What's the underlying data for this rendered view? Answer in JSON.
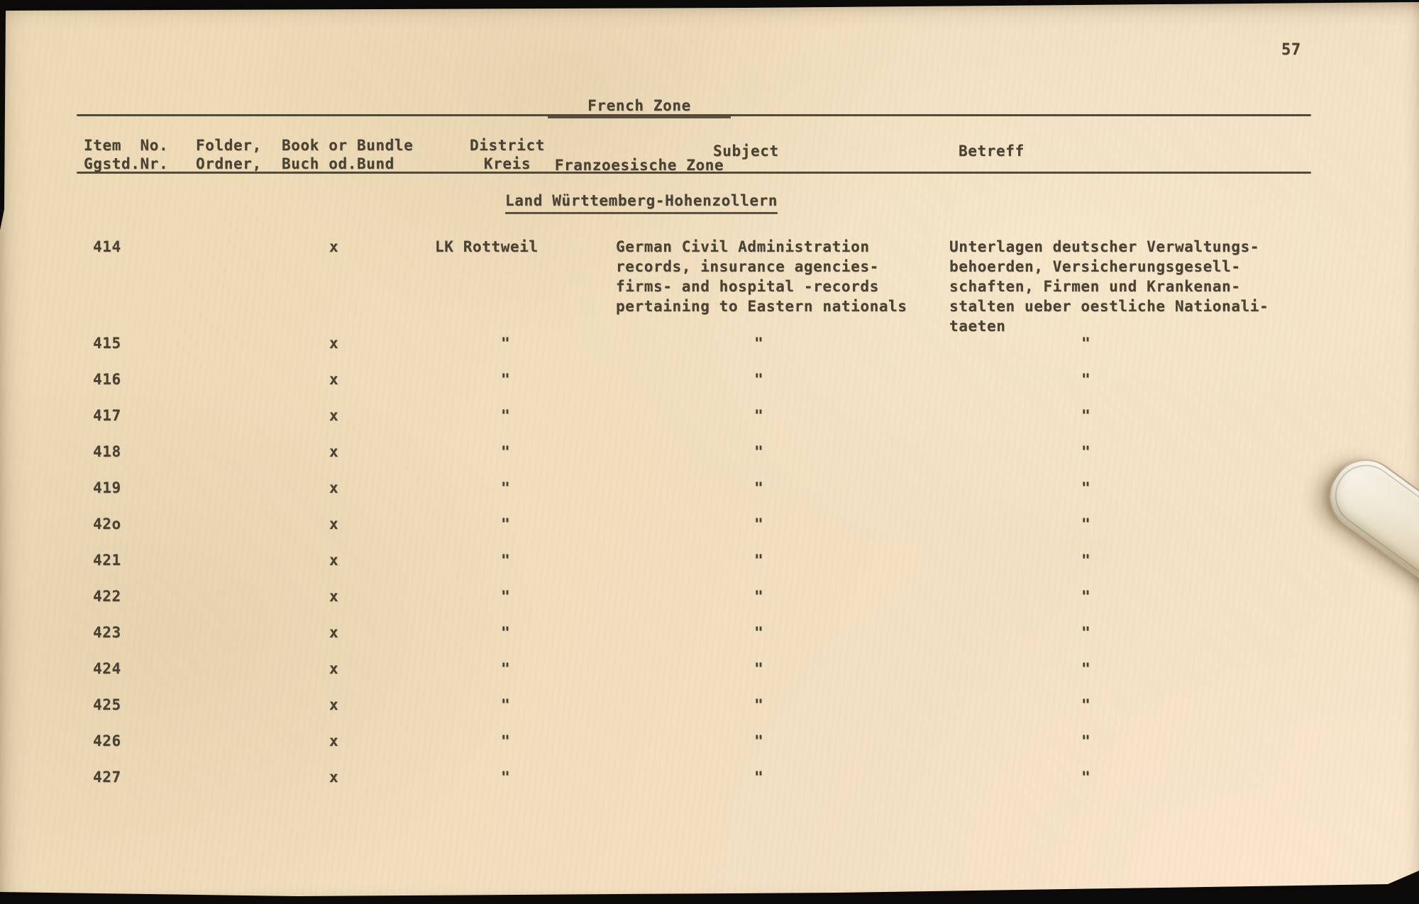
{
  "page": {
    "number": "57",
    "title": "French Zone",
    "subtitle": "Franzoesische Zone",
    "section_heading": "Land Württemberg-Hohenzollern"
  },
  "headers": {
    "item_en": "Item  No.",
    "item_de": "Ggstd.Nr.",
    "folder_en": "Folder,",
    "folder_de": "Ordner,",
    "book_en": "Book or Bundle",
    "book_de": "Buch od.Bund",
    "district_en": "District",
    "district_de": "Kreis",
    "subject": "Subject",
    "betreff": "Betreff"
  },
  "ditto_mark": "\"",
  "rows": [
    {
      "item": "414",
      "book": "x",
      "district": "LK Rottweil",
      "subject_lines": [
        "German Civil Administration",
        "records, insurance agencies-",
        "firms- and hospital -records",
        "pertaining to Eastern nationals"
      ],
      "betreff_lines": [
        "Unterlagen deutscher Verwaltungs-",
        "behoerden, Versicherungsgesell-",
        "schaften, Firmen und Krankenan-",
        "stalten ueber oestliche Nationali-",
        "taeten"
      ]
    },
    {
      "item": "415",
      "book": "x",
      "district": "\"",
      "subject_lines": [
        "\""
      ],
      "betreff_lines": [
        "\""
      ]
    },
    {
      "item": "416",
      "book": "x",
      "district": "\"",
      "subject_lines": [
        "\""
      ],
      "betreff_lines": [
        "\""
      ]
    },
    {
      "item": "417",
      "book": "x",
      "district": "\"",
      "subject_lines": [
        "\""
      ],
      "betreff_lines": [
        "\""
      ]
    },
    {
      "item": "418",
      "book": "x",
      "district": "\"",
      "subject_lines": [
        "\""
      ],
      "betreff_lines": [
        "\""
      ]
    },
    {
      "item": "419",
      "book": "x",
      "district": "\"",
      "subject_lines": [
        "\""
      ],
      "betreff_lines": [
        "\""
      ]
    },
    {
      "item": "42o",
      "book": "x",
      "district": "\"",
      "subject_lines": [
        "\""
      ],
      "betreff_lines": [
        "\""
      ]
    },
    {
      "item": "421",
      "book": "x",
      "district": "\"",
      "subject_lines": [
        "\""
      ],
      "betreff_lines": [
        "\""
      ]
    },
    {
      "item": "422",
      "book": "x",
      "district": "\"",
      "subject_lines": [
        "\""
      ],
      "betreff_lines": [
        "\""
      ]
    },
    {
      "item": "423",
      "book": "x",
      "district": "\"",
      "subject_lines": [
        "\""
      ],
      "betreff_lines": [
        "\""
      ]
    },
    {
      "item": "424",
      "book": "x",
      "district": "\"",
      "subject_lines": [
        "\""
      ],
      "betreff_lines": [
        "\""
      ]
    },
    {
      "item": "425",
      "book": "x",
      "district": "\"",
      "subject_lines": [
        "\""
      ],
      "betreff_lines": [
        "\""
      ]
    },
    {
      "item": "426",
      "book": "x",
      "district": "\"",
      "subject_lines": [
        "\""
      ],
      "betreff_lines": [
        "\""
      ]
    },
    {
      "item": "427",
      "book": "x",
      "district": "\"",
      "subject_lines": [
        "\""
      ],
      "betreff_lines": [
        "\""
      ]
    }
  ],
  "colors": {
    "paper": "#f0debd",
    "ink": "#4a4233",
    "edge_black": "#0c0a08"
  }
}
